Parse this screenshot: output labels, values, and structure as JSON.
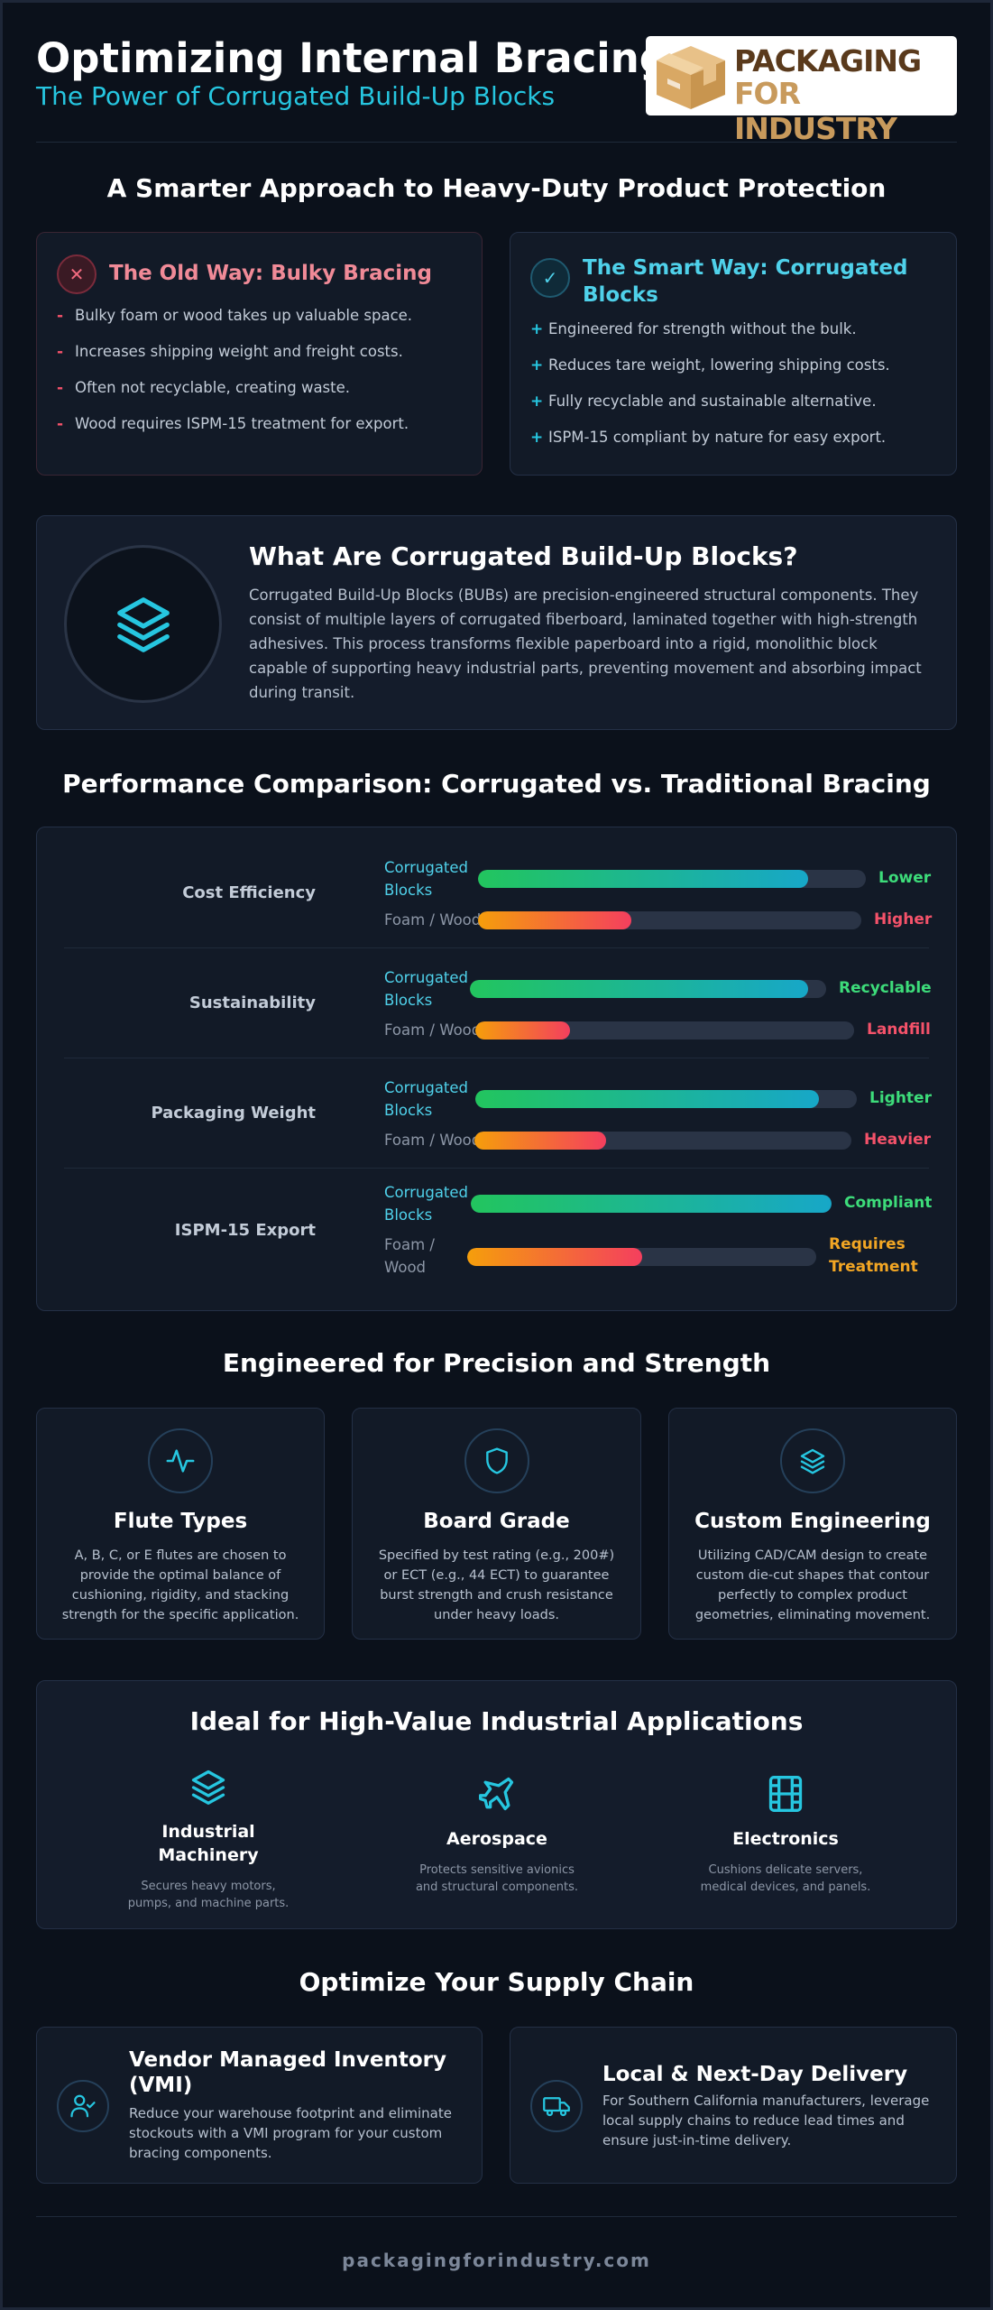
{
  "header": {
    "title": "Optimizing Internal Bracing",
    "subtitle": "The Power of Corrugated Build-Up Blocks",
    "logo_line1": "PACKAGING",
    "logo_line2": "FOR INDUSTRY"
  },
  "approach": {
    "heading": "A Smarter Approach to Heavy-Duty Product Protection",
    "old": {
      "title": "The Old Way: Bulky Bracing",
      "marker": "-",
      "items": [
        "Bulky foam or wood takes up valuable space.",
        "Increases shipping weight and freight costs.",
        "Often not recyclable, creating waste.",
        "Wood requires ISPM-15 treatment for export."
      ]
    },
    "smart": {
      "title_line1": "The Smart Way: Corrugated",
      "title_line2": "Blocks",
      "marker": "+",
      "items": [
        "Engineered for strength without the bulk.",
        "Reduces tare weight, lowering shipping costs.",
        "Fully recyclable and sustainable alternative.",
        "ISPM-15 compliant by nature for easy export."
      ]
    }
  },
  "what": {
    "title": "What Are Corrugated Build-Up Blocks?",
    "body": "Corrugated Build-Up Blocks (BUBs) are precision-engineered structural components. They consist of multiple layers of corrugated fiberboard, laminated together with high-strength adhesives. This process transforms flexible paperboard into a rigid, monolithic block capable of supporting heavy industrial parts, preventing movement and absorbing impact during transit."
  },
  "performance": {
    "heading": "Performance Comparison: Corrugated vs. Traditional Bracing",
    "rows": [
      {
        "metric": "Cost Efficiency",
        "corr_label": "Corrugated Blocks",
        "corr_label_l1": "Corrugated",
        "corr_label_l2": "Blocks",
        "corr_fill": 0.85,
        "corr_result": "Lower",
        "foam_label": "Foam / Wood",
        "foam_fill": 0.4,
        "foam_result": "Higher"
      },
      {
        "metric": "Sustainability",
        "corr_label_l1": "Corrugated",
        "corr_label_l2": "Blocks",
        "corr_fill": 0.95,
        "corr_result": "Recyclable",
        "foam_label": "Foam / Wood",
        "foam_fill": 0.25,
        "foam_result": "Landfill"
      },
      {
        "metric": "Packaging Weight",
        "corr_label_l1": "Corrugated",
        "corr_label_l2": "Blocks",
        "corr_fill": 0.9,
        "corr_result": "Lighter",
        "foam_label": "Foam / Wood",
        "foam_fill": 0.35,
        "foam_result": "Heavier"
      },
      {
        "metric": "ISPM-15 Export",
        "corr_label_l1": "Corrugated",
        "corr_label_l2": "Blocks",
        "corr_fill": 1.0,
        "corr_result": "Compliant",
        "foam_label_l1": "Foam /",
        "foam_label_l2": "Wood",
        "foam_fill": 0.5,
        "foam_result_l1": "Requires",
        "foam_result_l2": "Treatment"
      }
    ]
  },
  "precision": {
    "heading": "Engineered for Precision and Strength",
    "cards": [
      {
        "icon": "waveform-icon",
        "title": "Flute Types",
        "body": "A, B, C, or E flutes are chosen to provide the optimal balance of cushioning, rigidity, and stacking strength for the specific application."
      },
      {
        "icon": "shield-icon",
        "title": "Board Grade",
        "body": "Specified by test rating (e.g., 200#) or ECT (e.g., 44 ECT) to guarantee burst strength and crush resistance under heavy loads."
      },
      {
        "icon": "layers-icon",
        "title": "Custom Engineering",
        "body": "Utilizing CAD/CAM design to create custom die-cut shapes that contour perfectly to complex product geometries, eliminating movement."
      }
    ]
  },
  "applications": {
    "heading": "Ideal for High-Value Industrial Applications",
    "items": [
      {
        "icon": "layers-icon",
        "title_l1": "Industrial",
        "title_l2": "Machinery",
        "body_l1": "Secures heavy motors,",
        "body_l2": "pumps, and machine parts."
      },
      {
        "icon": "rocket-icon",
        "title_l1": "Aerospace",
        "title_l2": "",
        "body_l1": "Protects sensitive avionics",
        "body_l2": "and structural components."
      },
      {
        "icon": "film-icon",
        "title_l1": "Electronics",
        "title_l2": "",
        "body_l1": "Cushions delicate servers,",
        "body_l2": "medical devices, and panels."
      }
    ]
  },
  "supply": {
    "heading": "Optimize Your Supply Chain",
    "vmi": {
      "icon": "user-check-icon",
      "title_l1": "Vendor Managed Inventory",
      "title_l2": "(VMI)",
      "body": "Reduce your warehouse footprint and eliminate stockouts with a VMI program for your custom bracing components."
    },
    "delivery": {
      "icon": "truck-icon",
      "title": "Local & Next-Day Delivery",
      "body": "For Southern California manufacturers, leverage local supply chains to reduce lead times and ensure just-in-time delivery."
    }
  },
  "footer": {
    "url": "packagingforindustry.com"
  },
  "colors": {
    "background": "#0b111b",
    "accent_cyan": "#26c6e0",
    "old_red": "#f08a97",
    "green": "#3ddc7a",
    "red": "#f4526a",
    "amber": "#f2a624"
  }
}
